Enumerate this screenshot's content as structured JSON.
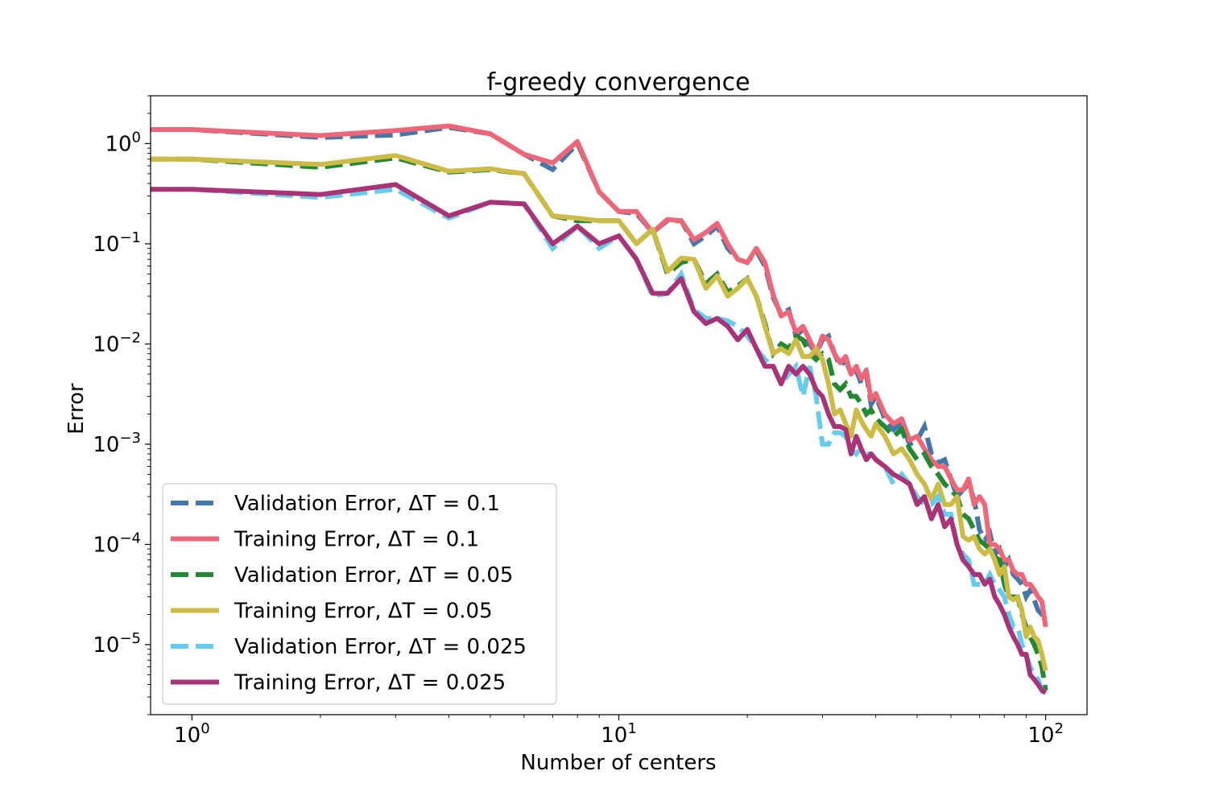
{
  "chart_data": {
    "type": "line",
    "title": "f-greedy convergence",
    "xlabel": "Number of centers",
    "ylabel": "Error",
    "xscale": "log",
    "yscale": "log",
    "xlim": [
      0.8,
      125
    ],
    "ylim": [
      2e-06,
      3
    ],
    "grid": false,
    "legend_position": "lower-left",
    "x_ticks": [
      {
        "value": 1,
        "base": "10",
        "exp": "0"
      },
      {
        "value": 10,
        "base": "10",
        "exp": "1"
      },
      {
        "value": 100,
        "base": "10",
        "exp": "2"
      }
    ],
    "y_ticks": [
      {
        "value": 1,
        "base": "10",
        "exp": "0"
      },
      {
        "value": 0.1,
        "base": "10",
        "exp": "−1"
      },
      {
        "value": 0.01,
        "base": "10",
        "exp": "−2"
      },
      {
        "value": 0.001,
        "base": "10",
        "exp": "−3"
      },
      {
        "value": 0.0001,
        "base": "10",
        "exp": "−4"
      },
      {
        "value": 1e-05,
        "base": "10",
        "exp": "−5"
      }
    ],
    "series": [
      {
        "name": "Validation Error, ΔT = 0.1",
        "color": "#4477aa",
        "dashed": true,
        "x": [
          0.8,
          1,
          2,
          3,
          4,
          5,
          6,
          7,
          8,
          9,
          10,
          11,
          12,
          13,
          14,
          15,
          16,
          17,
          18,
          19,
          20,
          21,
          22,
          23,
          24,
          25,
          26,
          27,
          28,
          29,
          30,
          31,
          32,
          33,
          34,
          35,
          36,
          37,
          38,
          39,
          40,
          42,
          44,
          46,
          48,
          50,
          52,
          54,
          56,
          58,
          60,
          62,
          64,
          66,
          68,
          70,
          72,
          74,
          76,
          78,
          80,
          82,
          84,
          86,
          88,
          90,
          92,
          94,
          96,
          98,
          100
        ],
        "y": [
          1.38,
          1.38,
          1.15,
          1.22,
          1.45,
          1.25,
          0.78,
          0.55,
          1.0,
          0.33,
          0.21,
          0.2,
          0.13,
          0.17,
          0.17,
          0.1,
          0.12,
          0.15,
          0.09,
          0.07,
          0.065,
          0.085,
          0.06,
          0.029,
          0.02,
          0.022,
          0.012,
          0.014,
          0.01,
          0.008,
          0.011,
          0.012,
          0.008,
          0.006,
          0.007,
          0.005,
          0.0055,
          0.004,
          0.005,
          0.0025,
          0.003,
          0.0018,
          0.0014,
          0.0016,
          0.001,
          0.0011,
          0.0015,
          0.0008,
          0.00065,
          0.0007,
          0.00045,
          0.0003,
          0.00035,
          0.0004,
          0.00028,
          0.00014,
          0.00011,
          0.00013,
          8e-05,
          9e-05,
          6e-05,
          7e-05,
          5e-05,
          4.5e-05,
          4e-05,
          3e-05,
          3.5e-05,
          2.8e-05,
          2.2e-05,
          2e-05,
          1.8e-05
        ]
      },
      {
        "name": "Training Error, ΔT = 0.1",
        "color": "#ee6677",
        "dashed": false,
        "x": [
          0.8,
          1,
          2,
          3,
          4,
          5,
          6,
          7,
          8,
          9,
          10,
          11,
          12,
          13,
          14,
          15,
          16,
          17,
          18,
          19,
          20,
          21,
          22,
          23,
          24,
          25,
          26,
          27,
          28,
          29,
          30,
          31,
          32,
          33,
          34,
          35,
          36,
          37,
          38,
          39,
          40,
          42,
          44,
          46,
          48,
          50,
          52,
          54,
          56,
          58,
          60,
          62,
          64,
          66,
          68,
          70,
          72,
          74,
          76,
          78,
          80,
          82,
          84,
          86,
          88,
          90,
          92,
          94,
          96,
          98,
          100
        ],
        "y": [
          1.38,
          1.38,
          1.2,
          1.35,
          1.5,
          1.25,
          0.78,
          0.64,
          1.05,
          0.33,
          0.21,
          0.21,
          0.13,
          0.175,
          0.17,
          0.11,
          0.13,
          0.16,
          0.1,
          0.07,
          0.065,
          0.09,
          0.065,
          0.031,
          0.019,
          0.021,
          0.013,
          0.015,
          0.011,
          0.008,
          0.012,
          0.011,
          0.008,
          0.0065,
          0.0075,
          0.005,
          0.006,
          0.0045,
          0.0055,
          0.0028,
          0.0032,
          0.002,
          0.0016,
          0.0018,
          0.0011,
          0.0012,
          0.0009,
          0.0007,
          0.0006,
          0.0006,
          0.00045,
          0.00035,
          0.00035,
          0.00045,
          0.00025,
          0.0003,
          0.00025,
          0.0001,
          0.0001,
          9e-05,
          7e-05,
          7e-05,
          5.5e-05,
          5e-05,
          5e-05,
          4e-05,
          4e-05,
          3.5e-05,
          3e-05,
          2.7e-05,
          1.5e-05
        ]
      },
      {
        "name": "Validation Error, ΔT = 0.05",
        "color": "#228833",
        "dashed": true,
        "x": [
          0.8,
          1,
          2,
          3,
          4,
          5,
          6,
          7,
          8,
          9,
          10,
          11,
          12,
          13,
          14,
          15,
          16,
          17,
          18,
          19,
          20,
          21,
          22,
          23,
          24,
          25,
          26,
          27,
          28,
          29,
          30,
          31,
          32,
          33,
          34,
          35,
          36,
          37,
          38,
          39,
          40,
          42,
          44,
          46,
          48,
          50,
          52,
          54,
          56,
          58,
          60,
          62,
          64,
          66,
          68,
          70,
          72,
          74,
          76,
          78,
          80,
          82,
          84,
          86,
          88,
          90,
          92,
          94,
          96,
          98,
          100
        ],
        "y": [
          0.7,
          0.7,
          0.58,
          0.72,
          0.52,
          0.55,
          0.5,
          0.19,
          0.17,
          0.17,
          0.17,
          0.1,
          0.14,
          0.05,
          0.065,
          0.07,
          0.04,
          0.05,
          0.033,
          0.038,
          0.045,
          0.03,
          0.016,
          0.008,
          0.01,
          0.009,
          0.012,
          0.011,
          0.008,
          0.007,
          0.008,
          0.007,
          0.004,
          0.0035,
          0.004,
          0.003,
          0.003,
          0.0025,
          0.002,
          0.0022,
          0.0018,
          0.0015,
          0.0012,
          0.0014,
          0.0009,
          0.0007,
          0.0008,
          0.0006,
          0.0005,
          0.0004,
          0.00035,
          0.0003,
          0.0002,
          0.00018,
          0.00014,
          0.00011,
          0.0001,
          9e-05,
          7.5e-05,
          7e-05,
          4e-05,
          3e-05,
          3e-05,
          3e-05,
          2e-05,
          1.5e-05,
          1.2e-05,
          1e-05,
          8e-06,
          6e-06,
          3.5e-06
        ]
      },
      {
        "name": "Training Error, ΔT = 0.05",
        "color": "#ccbb44",
        "dashed": false,
        "x": [
          0.8,
          1,
          2,
          3,
          4,
          5,
          6,
          7,
          8,
          9,
          10,
          11,
          12,
          13,
          14,
          15,
          16,
          17,
          18,
          19,
          20,
          21,
          22,
          23,
          24,
          25,
          26,
          27,
          28,
          29,
          30,
          31,
          32,
          33,
          34,
          35,
          36,
          37,
          38,
          39,
          40,
          42,
          44,
          46,
          48,
          50,
          52,
          54,
          56,
          58,
          60,
          62,
          64,
          66,
          68,
          70,
          72,
          74,
          76,
          78,
          80,
          82,
          84,
          86,
          88,
          90,
          92,
          94,
          96,
          98,
          100
        ],
        "y": [
          0.7,
          0.7,
          0.62,
          0.76,
          0.53,
          0.56,
          0.5,
          0.19,
          0.18,
          0.17,
          0.17,
          0.1,
          0.14,
          0.053,
          0.072,
          0.07,
          0.036,
          0.048,
          0.03,
          0.036,
          0.045,
          0.03,
          0.015,
          0.008,
          0.009,
          0.008,
          0.011,
          0.0075,
          0.0075,
          0.009,
          0.007,
          0.004,
          0.002,
          0.0022,
          0.0016,
          0.0012,
          0.0022,
          0.0017,
          0.0014,
          0.0012,
          0.0016,
          0.0012,
          0.0008,
          0.0009,
          0.0007,
          0.0005,
          0.0004,
          0.00028,
          0.0004,
          0.00025,
          0.00025,
          0.0003,
          0.00012,
          0.00011,
          0.00012,
          9e-05,
          8e-05,
          9e-05,
          7e-05,
          5e-05,
          6e-05,
          3e-05,
          2.8e-05,
          3e-05,
          2.2e-05,
          1.2e-05,
          1.5e-05,
          1.2e-05,
          1.1e-05,
          8e-06,
          5.5e-06
        ]
      },
      {
        "name": "Validation Error, ΔT = 0.025",
        "color": "#66ccee",
        "dashed": true,
        "x": [
          0.8,
          1,
          2,
          3,
          4,
          5,
          6,
          7,
          8,
          9,
          10,
          11,
          12,
          13,
          14,
          15,
          16,
          17,
          18,
          19,
          20,
          21,
          22,
          23,
          24,
          25,
          26,
          27,
          28,
          29,
          30,
          31,
          32,
          33,
          34,
          35,
          36,
          37,
          38,
          39,
          40,
          42,
          44,
          46,
          48,
          50,
          52,
          54,
          56,
          58,
          60,
          62,
          64,
          66,
          68,
          70,
          72,
          74,
          76,
          78,
          80,
          82,
          84,
          86,
          88,
          90,
          92,
          94,
          96,
          98,
          100
        ],
        "y": [
          0.35,
          0.35,
          0.29,
          0.35,
          0.18,
          0.26,
          0.25,
          0.09,
          0.15,
          0.09,
          0.12,
          0.07,
          0.03,
          0.032,
          0.05,
          0.022,
          0.018,
          0.018,
          0.017,
          0.015,
          0.012,
          0.009,
          0.007,
          0.006,
          0.004,
          0.005,
          0.006,
          0.003,
          0.006,
          0.003,
          0.001,
          0.001,
          0.0013,
          0.0013,
          0.0012,
          0.0009,
          0.0008,
          0.0009,
          0.0008,
          0.0008,
          0.0007,
          0.0006,
          0.0004,
          0.0005,
          0.0004,
          0.0003,
          0.00025,
          0.00025,
          0.0003,
          0.0002,
          0.0002,
          0.0001,
          8e-05,
          7e-05,
          4e-05,
          4e-05,
          4e-05,
          5e-05,
          4e-05,
          3.5e-05,
          3e-05,
          2e-05,
          1.5e-05,
          1.5e-05,
          1e-05,
          8e-06,
          6e-06,
          5e-06,
          4.5e-06,
          3.5e-06,
          2.8e-06
        ]
      },
      {
        "name": "Training Error, ΔT = 0.025",
        "color": "#aa3377",
        "dashed": false,
        "x": [
          0.8,
          1,
          2,
          3,
          4,
          5,
          6,
          7,
          8,
          9,
          10,
          11,
          12,
          13,
          14,
          15,
          16,
          17,
          18,
          19,
          20,
          21,
          22,
          23,
          24,
          25,
          26,
          27,
          28,
          29,
          30,
          31,
          32,
          33,
          34,
          35,
          36,
          37,
          38,
          39,
          40,
          42,
          44,
          46,
          48,
          50,
          52,
          54,
          56,
          58,
          60,
          62,
          64,
          66,
          68,
          70,
          72,
          74,
          76,
          78,
          80,
          82,
          84,
          86,
          88,
          90,
          92,
          94,
          96,
          98,
          100
        ],
        "y": [
          0.35,
          0.35,
          0.31,
          0.39,
          0.19,
          0.26,
          0.25,
          0.1,
          0.15,
          0.1,
          0.12,
          0.07,
          0.032,
          0.032,
          0.045,
          0.021,
          0.016,
          0.018,
          0.015,
          0.011,
          0.014,
          0.009,
          0.006,
          0.006,
          0.004,
          0.006,
          0.005,
          0.006,
          0.005,
          0.0035,
          0.003,
          0.002,
          0.0015,
          0.0015,
          0.0014,
          0.0008,
          0.0012,
          0.0009,
          0.0007,
          0.0008,
          0.0007,
          0.0006,
          0.0005,
          0.00045,
          0.0004,
          0.00025,
          0.0003,
          0.00018,
          0.00025,
          0.00015,
          0.00018,
          0.0001,
          7e-05,
          6e-05,
          5e-05,
          5e-05,
          4e-05,
          4.5e-05,
          3e-05,
          2.5e-05,
          2e-05,
          1.5e-05,
          1.2e-05,
          1e-05,
          8e-06,
          8e-06,
          5e-06,
          4.5e-06,
          4e-06,
          3.5e-06,
          3.3e-06
        ]
      }
    ]
  }
}
